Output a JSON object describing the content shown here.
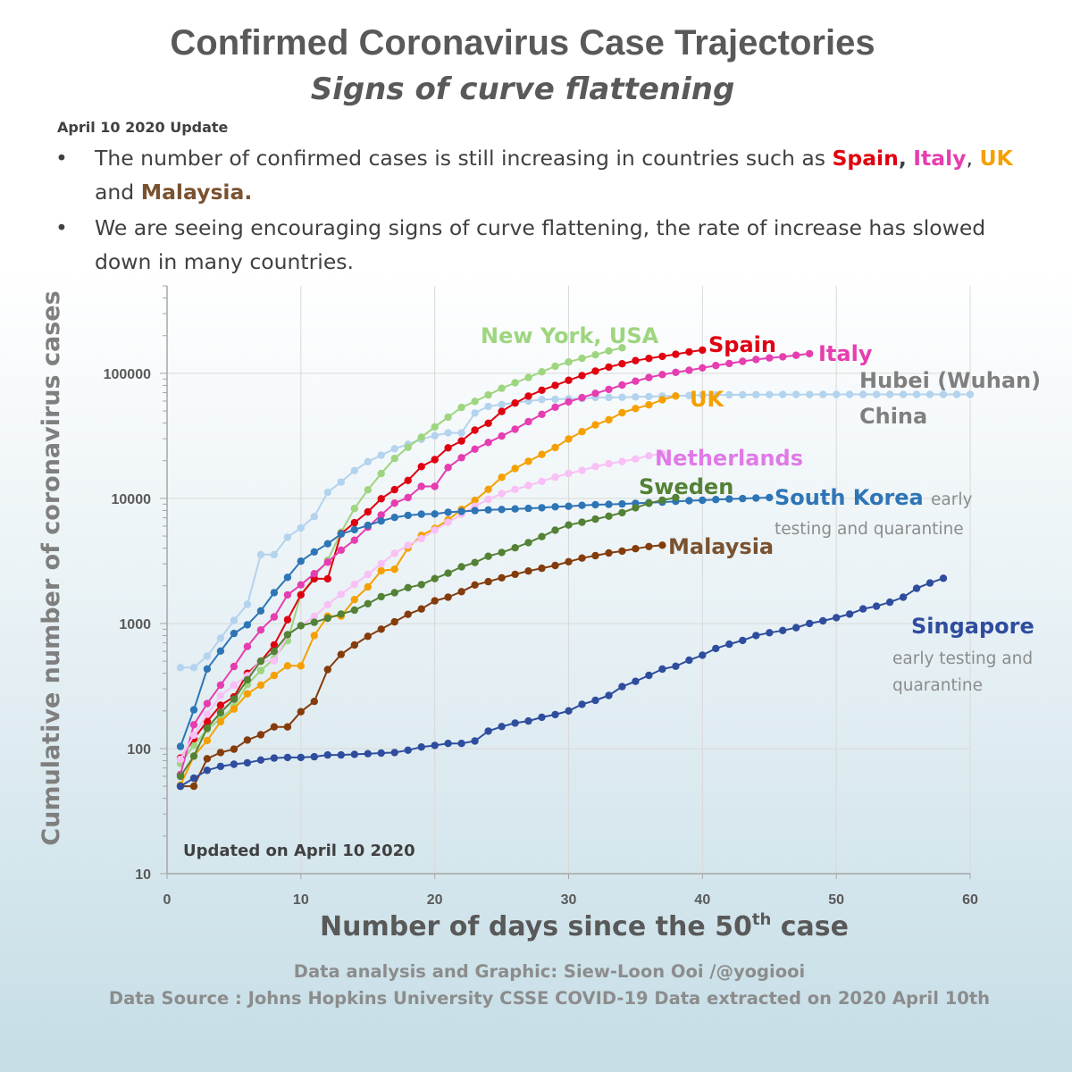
{
  "header": {
    "title": "Confirmed Coronavirus Case Trajectories",
    "subtitle": "Signs of curve flattening"
  },
  "update": {
    "label": "April 10 2020 Update",
    "bullet1_text": "The number of confirmed cases is still increasing in countries such as ",
    "bullet1_spain": "Spain",
    "bullet1_comma1": ",",
    "bullet1_italy": "Italy",
    "bullet1_comma2": ", ",
    "bullet1_uk": "UK",
    "bullet1_and": " and ",
    "bullet1_malaysia": "Malaysia.",
    "bullet2_text": "We are seeing encouraging signs of curve flattening, the rate of increase has slowed down in many countries."
  },
  "footer": {
    "line1": "Data analysis and Graphic: Siew-Loon Ooi /@yogiooi",
    "line2": "Data Source : Johns Hopkins University CSSE COVID-19 Data extracted on 2020 April 10th"
  },
  "chart_data": {
    "type": "line",
    "title": "",
    "xlabel": "Number of days since the 50",
    "xlabel_sup": "th",
    "xlabel_suffix": " case",
    "ylabel": "Cumulative number of coronavirus cases",
    "yscale": "log",
    "xlim": [
      0,
      60
    ],
    "ylim": [
      10,
      500000
    ],
    "x_ticks": [
      0,
      10,
      20,
      30,
      40,
      50,
      60
    ],
    "y_ticks": [
      10,
      100,
      1000,
      10000,
      100000
    ],
    "grid": true,
    "annotation": "Updated on April 10 2020",
    "series": [
      {
        "name": "Hubei (Wuhan)",
        "label2": "China",
        "color": "#b3d3ee",
        "x": [
          1,
          2,
          3,
          4,
          5,
          6,
          7,
          8,
          9,
          10,
          11,
          12,
          13,
          14,
          15,
          16,
          17,
          18,
          19,
          20,
          21,
          22,
          23,
          24,
          25,
          26,
          27,
          28,
          29,
          30,
          31,
          32,
          33,
          34,
          35,
          36,
          37,
          38,
          39,
          40,
          41,
          42,
          43,
          44,
          45,
          46,
          47,
          48,
          49,
          50,
          51,
          52,
          53,
          54,
          55,
          56,
          57,
          58,
          59,
          60
        ],
        "y": [
          444,
          444,
          549,
          761,
          1058,
          1423,
          3554,
          3554,
          4903,
          5806,
          7153,
          11177,
          13522,
          16678,
          19665,
          22112,
          24953,
          27100,
          29631,
          31728,
          33366,
          33366,
          48206,
          54406,
          56249,
          58182,
          59989,
          61682,
          62031,
          62442,
          62662,
          64084,
          64084,
          64287,
          64786,
          65187,
          65596,
          65914,
          66337,
          66907,
          67103,
          67217,
          67332,
          67466,
          67592,
          67666,
          67707,
          67743,
          67760,
          67773,
          67781,
          67786,
          67790,
          67794,
          67798,
          67799,
          67800,
          67800,
          67801,
          67802
        ]
      },
      {
        "name": "New York, USA",
        "color": "#9ed57f",
        "x": [
          1,
          2,
          3,
          4,
          5,
          6,
          7,
          8,
          9,
          10,
          11,
          12,
          13,
          14,
          15,
          16,
          17,
          18,
          19,
          20,
          21,
          22,
          23,
          24,
          25,
          26,
          27,
          28,
          29,
          30,
          31,
          32,
          33,
          34
        ],
        "y": [
          76,
          106,
          142,
          173,
          216,
          325,
          421,
          524,
          729,
          1700,
          2382,
          3200,
          5365,
          8310,
          11710,
          15800,
          20875,
          25665,
          30841,
          37258,
          44635,
          53363,
          59648,
          67174,
          75833,
          83948,
          92506,
          102870,
          113833,
          123160,
          131815,
          140386,
          151079,
          159937
        ]
      },
      {
        "name": "Spain",
        "color": "#e00010",
        "x": [
          1,
          2,
          3,
          4,
          5,
          6,
          7,
          8,
          9,
          10,
          11,
          12,
          13,
          14,
          15,
          16,
          17,
          18,
          19,
          20,
          21,
          22,
          23,
          24,
          25,
          26,
          27,
          28,
          29,
          30,
          31,
          32,
          33,
          34,
          35,
          36,
          37,
          38,
          39,
          40
        ],
        "y": [
          84,
          120,
          165,
          222,
          259,
          400,
          500,
          673,
          1073,
          1695,
          2277,
          2277,
          5232,
          6391,
          7798,
          9942,
          11748,
          13910,
          17963,
          20410,
          25374,
          28768,
          35136,
          39885,
          49515,
          57786,
          65719,
          73235,
          80110,
          87956,
          95923,
          104118,
          112065,
          119199,
          126168,
          131646,
          136675,
          141942,
          148220,
          153222
        ]
      },
      {
        "name": "Italy",
        "color": "#e63db0",
        "x": [
          1,
          2,
          3,
          4,
          5,
          6,
          7,
          8,
          9,
          10,
          11,
          12,
          13,
          14,
          15,
          16,
          17,
          18,
          19,
          20,
          21,
          22,
          23,
          24,
          25,
          26,
          27,
          28,
          29,
          30,
          31,
          32,
          33,
          34,
          35,
          36,
          37,
          38,
          39,
          40,
          41,
          42,
          43,
          44,
          45,
          46,
          47,
          48
        ],
        "y": [
          62,
          155,
          229,
          322,
          453,
          655,
          888,
          1128,
          1694,
          2036,
          2502,
          3089,
          3858,
          4636,
          5883,
          7375,
          9172,
          10149,
          12462,
          12462,
          17660,
          21157,
          24747,
          27980,
          31506,
          35713,
          41035,
          47021,
          53578,
          59138,
          63927,
          69176,
          74386,
          80589,
          86498,
          92472,
          97689,
          101739,
          105792,
          110574,
          115242,
          119827,
          124632,
          128948,
          132547,
          135586,
          139422,
          143626
        ]
      },
      {
        "name": "UK",
        "color": "#f5a000",
        "x": [
          1,
          2,
          3,
          4,
          5,
          6,
          7,
          8,
          9,
          10,
          11,
          12,
          13,
          14,
          15,
          16,
          17,
          18,
          19,
          20,
          21,
          22,
          23,
          24,
          25,
          26,
          27,
          28,
          29,
          30,
          31,
          32,
          33,
          34,
          35,
          36,
          37,
          38
        ],
        "y": [
          51,
          87,
          116,
          164,
          207,
          274,
          322,
          384,
          459,
          459,
          802,
          1144,
          1145,
          1551,
          1960,
          2642,
          2716,
          4014,
          5067,
          5745,
          6726,
          8164,
          9640,
          11812,
          14745,
          17312,
          19780,
          22453,
          25481,
          29865,
          34173,
          38689,
          42477,
          48436,
          52279,
          55949,
          61474,
          65872
        ]
      },
      {
        "name": "Netherlands",
        "color": "#f9c0f5",
        "x": [
          1,
          2,
          3,
          4,
          5,
          6,
          7,
          8,
          9,
          10,
          11,
          12,
          13,
          14,
          15,
          16,
          17,
          18,
          19,
          20,
          21,
          22,
          23,
          24,
          25,
          26,
          27,
          28,
          29,
          30,
          31,
          32,
          33,
          34,
          35,
          36,
          37
        ],
        "y": [
          82,
          128,
          188,
          265,
          321,
          382,
          503,
          503,
          806,
          962,
          1138,
          1416,
          1711,
          2058,
          2467,
          3003,
          3640,
          4217,
          4764,
          5580,
          6438,
          7468,
          8647,
          9819,
          10930,
          11817,
          12667,
          13696,
          14788,
          15821,
          16727,
          17953,
          18926,
          19709,
          20682,
          21903,
          22781
        ]
      },
      {
        "name": "South Korea",
        "color": "#2e75b6",
        "x": [
          1,
          2,
          3,
          4,
          5,
          6,
          7,
          8,
          9,
          10,
          11,
          12,
          13,
          14,
          15,
          16,
          17,
          18,
          19,
          20,
          21,
          22,
          23,
          24,
          25,
          26,
          27,
          28,
          29,
          30,
          31,
          32,
          33,
          34,
          35,
          36,
          37,
          38,
          39,
          40,
          41,
          42,
          43,
          44,
          45
        ],
        "y": [
          104,
          204,
          433,
          602,
          833,
          977,
          1261,
          1766,
          2337,
          3150,
          3736,
          4335,
          5186,
          5621,
          6088,
          6593,
          7041,
          7314,
          7478,
          7513,
          7755,
          7869,
          7979,
          8086,
          8162,
          8236,
          8320,
          8413,
          8565,
          8652,
          8799,
          8897,
          8961,
          9037,
          9137,
          9241,
          9332,
          9478,
          9583,
          9661,
          9786,
          9887,
          9976,
          10062,
          10156
        ]
      },
      {
        "name": "Sweden",
        "color": "#538135",
        "x": [
          1,
          2,
          3,
          4,
          5,
          6,
          7,
          8,
          9,
          10,
          11,
          12,
          13,
          14,
          15,
          16,
          17,
          18,
          19,
          20,
          21,
          22,
          23,
          24,
          25,
          26,
          27,
          28,
          29,
          30,
          31,
          32,
          33,
          34,
          35,
          36,
          37,
          38
        ],
        "y": [
          60,
          87,
          146,
          194,
          248,
          355,
          500,
          599,
          814,
          961,
          1022,
          1103,
          1190,
          1279,
          1439,
          1639,
          1763,
          1934,
          2046,
          2286,
          2526,
          2840,
          3069,
          3447,
          3700,
          4028,
          4435,
          4947,
          5568,
          6131,
          6443,
          6830,
          7206,
          7693,
          8419,
          9141,
          9685,
          10151
        ]
      },
      {
        "name": "Malaysia",
        "color": "#843c0c",
        "x": [
          1,
          2,
          3,
          4,
          5,
          6,
          7,
          8,
          9,
          10,
          11,
          12,
          13,
          14,
          15,
          16,
          17,
          18,
          19,
          20,
          21,
          22,
          23,
          24,
          25,
          26,
          27,
          28,
          29,
          30,
          31,
          32,
          33,
          34,
          35,
          36,
          37
        ],
        "y": [
          50,
          50,
          83,
          93,
          99,
          117,
          129,
          149,
          149,
          197,
          238,
          428,
          566,
          673,
          790,
          900,
          1030,
          1183,
          1306,
          1518,
          1624,
          1796,
          2031,
          2161,
          2320,
          2470,
          2626,
          2766,
          2908,
          3116,
          3333,
          3483,
          3662,
          3793,
          3963,
          4119,
          4228
        ]
      },
      {
        "name": "Singapore",
        "color": "#2f4d9e",
        "x": [
          1,
          2,
          3,
          4,
          5,
          6,
          7,
          8,
          9,
          10,
          11,
          12,
          13,
          14,
          15,
          16,
          17,
          18,
          19,
          20,
          21,
          22,
          23,
          24,
          25,
          26,
          27,
          28,
          29,
          30,
          31,
          32,
          33,
          34,
          35,
          36,
          37,
          38,
          39,
          40,
          41,
          42,
          43,
          44,
          45,
          46,
          47,
          48,
          49,
          50,
          51,
          52,
          53,
          54,
          55,
          56,
          57,
          58
        ],
        "y": [
          50,
          58,
          67,
          72,
          75,
          77,
          81,
          84,
          85,
          85,
          86,
          89,
          89,
          90,
          91,
          92,
          93,
          97,
          103,
          106,
          110,
          110,
          115,
          138,
          150,
          160,
          166,
          178,
          187,
          200,
          226,
          243,
          266,
          313,
          345,
          385,
          432,
          455,
          509,
          558,
          631,
          683,
          732,
          802,
          844,
          879,
          926,
          1000,
          1049,
          1114,
          1189,
          1309,
          1375,
          1481,
          1623,
          1910,
          2108,
          2299
        ]
      }
    ]
  },
  "labels": {
    "new_york": "New York, USA",
    "spain": "Spain",
    "italy": "Italy",
    "hubei": "Hubei (Wuhan)",
    "china": "China",
    "uk": "UK",
    "netherlands": "Netherlands",
    "sweden": "Sweden",
    "south_korea": "South Korea",
    "south_korea_note1": "early",
    "south_korea_note2": "testing and quarantine",
    "malaysia": "Malaysia",
    "singapore": "Singapore",
    "singapore_note1": "early testing and",
    "singapore_note2": "quarantine"
  }
}
